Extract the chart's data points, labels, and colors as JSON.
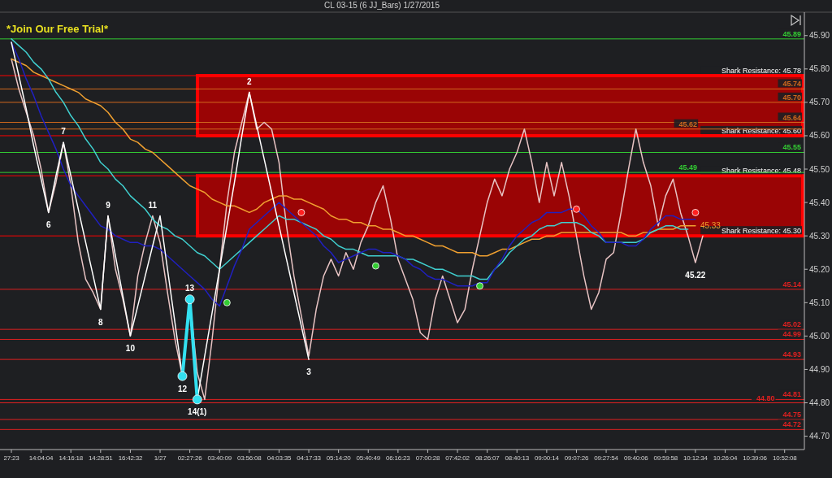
{
  "chart_data": {
    "type": "line",
    "title": "CL 03-15 (6 JJ_Bars)  1/27/2015",
    "categories": [
      "27:23",
      null,
      null,
      null,
      "14:04:04",
      null,
      null,
      null,
      "14:16:18",
      null,
      null,
      null,
      "14:28:51",
      null,
      null,
      null,
      "16:42:32",
      null,
      null,
      null,
      "1/27",
      null,
      null,
      null,
      "02:27:26",
      null,
      null,
      null,
      "03:40:09",
      null,
      null,
      null,
      "03:56:08",
      null,
      null,
      null,
      "04:03:35",
      null,
      null,
      null,
      "04:17:33",
      null,
      null,
      null,
      "05:14:20",
      null,
      null,
      null,
      "05:40:49",
      null,
      null,
      null,
      "06:16:23",
      null,
      null,
      null,
      "07:00:28",
      null,
      null,
      null,
      "07:42:02",
      null,
      null,
      null,
      "08:26:07",
      null,
      null,
      null,
      "08:40:13",
      null,
      null,
      null,
      "09:00:14",
      null,
      null,
      null,
      "09:07:26",
      null,
      null,
      null,
      "09:27:54",
      null,
      null,
      null,
      "09:40:06",
      null,
      null,
      null,
      "09:59:58",
      null,
      null,
      null,
      "10:12:34",
      null,
      null,
      null,
      "10:26:04",
      null,
      null,
      null,
      "10:39:06",
      null,
      null,
      null,
      "10:52:08",
      null,
      null
    ],
    "ylim": [
      44.66,
      45.97
    ],
    "yticks": [
      {
        "value": 44.7,
        "label": "44.70"
      },
      {
        "value": 44.8,
        "label": "44.80"
      },
      {
        "value": 44.9,
        "label": "44.90"
      },
      {
        "value": 45.0,
        "label": "45.00"
      },
      {
        "value": 45.1,
        "label": "45.10"
      },
      {
        "value": 45.2,
        "label": "45.20"
      },
      {
        "value": 45.3,
        "label": "45.30"
      },
      {
        "value": 45.4,
        "label": "45.40"
      },
      {
        "value": 45.5,
        "label": "45.50"
      },
      {
        "value": 45.6,
        "label": "45.60"
      },
      {
        "value": 45.7,
        "label": "45.70"
      },
      {
        "value": 45.8,
        "label": "45.80"
      },
      {
        "value": 45.9,
        "label": "45.90"
      }
    ],
    "grid": false,
    "bands": [
      {
        "axis": "y",
        "from": 45.6,
        "to": 45.78,
        "color": "#ff0000"
      },
      {
        "axis": "y",
        "from": 45.3,
        "to": 45.48,
        "color": "#ff0000"
      }
    ],
    "ref_lines": [
      {
        "axis": "y",
        "value": 45.78,
        "label": "Shark Resistance: 45.78",
        "color": "#ff0000"
      },
      {
        "axis": "y",
        "value": 45.6,
        "label": "Shark Resistance: 45.60",
        "color": "#ff0000"
      },
      {
        "axis": "y",
        "value": 45.48,
        "label": "Shark Resistance: 45.48",
        "color": "#ff0000"
      },
      {
        "axis": "y",
        "value": 45.3,
        "label": "Shark Resistance: 45.30",
        "color": "#ff0000"
      },
      {
        "axis": "y",
        "value": 45.89,
        "label": "45.89",
        "color": "#33cc33"
      },
      {
        "axis": "y",
        "value": 45.74,
        "label": "45.74",
        "color": "#d2691e"
      },
      {
        "axis": "y",
        "value": 45.7,
        "label": "45.70",
        "color": "#d2691e"
      },
      {
        "axis": "y",
        "value": 45.64,
        "label": "45.64",
        "color": "#d2691e"
      },
      {
        "axis": "y",
        "value": 45.62,
        "label": "45.62",
        "color": "#d2691e"
      },
      {
        "axis": "y",
        "value": 45.55,
        "label": "45.55",
        "color": "#33cc33"
      },
      {
        "axis": "y",
        "value": 45.49,
        "label": "45.49",
        "color": "#33cc33"
      },
      {
        "axis": "y",
        "value": 45.14,
        "label": "45.14",
        "color": "#e02020"
      },
      {
        "axis": "y",
        "value": 45.02,
        "label": "45.02",
        "color": "#e02020"
      },
      {
        "axis": "y",
        "value": 44.99,
        "label": "44.99",
        "color": "#e02020"
      },
      {
        "axis": "y",
        "value": 44.93,
        "label": "44.93",
        "color": "#e02020"
      },
      {
        "axis": "y",
        "value": 44.81,
        "label": "44.81",
        "color": "#e02020"
      },
      {
        "axis": "y",
        "value": 44.8,
        "label": "44.80",
        "color": "#e02020"
      },
      {
        "axis": "y",
        "value": 44.75,
        "label": "44.75",
        "color": "#e02020"
      },
      {
        "axis": "y",
        "value": 44.72,
        "label": "44.72",
        "color": "#e02020"
      }
    ],
    "annotations": [
      "*Join Our Free Trial*",
      {
        "text": "6",
        "y": 45.37
      },
      {
        "text": "7",
        "y": 45.58
      },
      {
        "text": "8",
        "y": 45.08
      },
      {
        "text": "9",
        "y": 45.36
      },
      {
        "text": "10",
        "y": 45.0
      },
      {
        "text": "11",
        "y": 45.36
      },
      {
        "text": "12",
        "y": 44.88
      },
      {
        "text": "13",
        "y": 45.11
      },
      {
        "text": "14(1)",
        "y": 44.81
      },
      {
        "text": "2",
        "y": 45.73
      },
      {
        "text": "3",
        "y": 44.93
      }
    ],
    "series": [
      {
        "color": "#e8c4c4",
        "values": [
          45.83,
          45.74,
          45.67,
          45.6,
          45.5,
          45.37,
          45.46,
          45.58,
          45.45,
          45.28,
          45.17,
          45.13,
          45.08,
          45.36,
          45.2,
          45.11,
          45.0,
          45.18,
          45.28,
          45.36,
          45.28,
          45.13,
          44.99,
          44.88,
          45.11,
          44.89,
          44.81,
          44.99,
          45.2,
          45.4,
          45.55,
          45.64,
          45.73,
          45.62,
          45.64,
          45.62,
          45.52,
          45.33,
          45.18,
          45.06,
          44.94,
          45.08,
          45.18,
          45.23,
          45.18,
          45.25,
          45.2,
          45.28,
          45.33,
          45.4,
          45.45,
          45.35,
          45.23,
          45.17,
          45.11,
          45.01,
          44.99,
          45.11,
          45.18,
          45.11,
          45.04,
          45.08,
          45.2,
          45.3,
          45.4,
          45.47,
          45.42,
          45.5,
          45.55,
          45.62,
          45.52,
          45.4,
          45.52,
          45.42,
          45.52,
          45.42,
          45.3,
          45.18,
          45.08,
          45.13,
          45.23,
          45.25,
          45.37,
          45.5,
          45.62,
          45.52,
          45.45,
          45.33,
          45.42,
          45.47,
          45.37,
          45.3,
          45.22,
          45.3,
          null,
          null,
          null,
          null,
          null,
          null,
          null,
          null,
          null,
          null,
          null,
          null,
          null
        ],
        "value_labels": [
          null,
          null,
          null,
          null,
          null,
          null,
          null,
          null,
          null,
          null,
          null,
          null,
          null,
          null,
          null,
          null,
          null,
          null,
          null,
          null,
          null,
          null,
          null,
          null,
          null,
          null,
          null,
          null,
          null,
          null,
          null,
          null,
          null,
          null,
          null,
          null,
          null,
          null,
          null,
          null,
          null,
          null,
          null,
          null,
          null,
          null,
          null,
          null,
          null,
          null,
          null,
          null,
          null,
          null,
          null,
          null,
          null,
          null,
          null,
          null,
          null,
          null,
          null,
          null,
          null,
          null,
          null,
          null,
          null,
          null,
          null,
          null,
          null,
          null,
          null,
          null,
          null,
          null,
          null,
          null,
          null,
          null,
          null,
          null,
          null,
          null,
          null,
          null,
          null,
          null,
          null,
          null,
          "45.22",
          null,
          null,
          null,
          null,
          null,
          null,
          null,
          null,
          null,
          null,
          null,
          null,
          null,
          null
        ]
      },
      {
        "color": "#f0a030",
        "values": [
          45.83,
          45.82,
          45.81,
          45.79,
          45.78,
          45.77,
          45.76,
          45.75,
          45.74,
          45.73,
          45.71,
          45.7,
          45.69,
          45.67,
          45.64,
          45.62,
          45.59,
          45.58,
          45.56,
          45.55,
          45.53,
          45.51,
          45.49,
          45.47,
          45.45,
          45.44,
          45.43,
          45.41,
          45.4,
          45.39,
          45.39,
          45.38,
          45.37,
          45.38,
          45.4,
          45.41,
          45.42,
          45.42,
          45.41,
          45.41,
          45.4,
          45.39,
          45.38,
          45.36,
          45.35,
          45.35,
          45.34,
          45.34,
          45.33,
          45.33,
          45.32,
          45.32,
          45.31,
          45.3,
          45.3,
          45.29,
          45.28,
          45.27,
          45.27,
          45.26,
          45.25,
          45.25,
          45.25,
          45.24,
          45.24,
          45.25,
          45.26,
          45.26,
          45.27,
          45.28,
          45.29,
          45.29,
          45.3,
          45.3,
          45.31,
          45.31,
          45.31,
          45.31,
          45.31,
          45.31,
          45.31,
          45.31,
          45.31,
          45.3,
          45.3,
          45.31,
          45.31,
          45.32,
          45.32,
          45.32,
          45.33,
          45.33,
          45.33,
          null,
          null,
          null,
          null,
          null,
          null,
          null,
          null,
          null,
          null,
          null,
          null,
          null,
          null
        ],
        "value_labels": [
          null,
          null,
          null,
          null,
          null,
          null,
          null,
          null,
          null,
          null,
          null,
          null,
          null,
          null,
          null,
          null,
          null,
          null,
          null,
          null,
          null,
          null,
          null,
          null,
          null,
          null,
          null,
          null,
          null,
          null,
          null,
          null,
          null,
          null,
          null,
          null,
          null,
          null,
          null,
          null,
          null,
          null,
          null,
          null,
          null,
          null,
          null,
          null,
          null,
          null,
          null,
          null,
          null,
          null,
          null,
          null,
          null,
          null,
          null,
          null,
          null,
          null,
          null,
          null,
          null,
          null,
          null,
          null,
          null,
          null,
          null,
          null,
          null,
          null,
          null,
          null,
          null,
          null,
          null,
          null,
          null,
          null,
          null,
          null,
          null,
          null,
          null,
          null,
          null,
          null,
          null,
          null,
          "45.33",
          null,
          null,
          null,
          null,
          null,
          null,
          null,
          null,
          null,
          null,
          null,
          null,
          null,
          null
        ]
      },
      {
        "color": "#40d0d0",
        "values": [
          45.89,
          45.87,
          45.85,
          45.82,
          45.8,
          45.77,
          45.73,
          45.7,
          45.66,
          45.63,
          45.59,
          45.56,
          45.52,
          45.5,
          45.47,
          45.45,
          45.42,
          45.4,
          45.38,
          45.35,
          45.33,
          45.32,
          45.3,
          45.29,
          45.27,
          45.25,
          45.24,
          45.22,
          45.2,
          45.22,
          45.24,
          45.26,
          45.28,
          45.3,
          45.32,
          45.34,
          45.36,
          45.35,
          45.35,
          45.34,
          45.33,
          45.32,
          45.3,
          45.29,
          45.27,
          45.26,
          45.26,
          45.25,
          45.24,
          45.24,
          45.24,
          45.24,
          45.24,
          45.23,
          45.23,
          45.22,
          45.21,
          45.2,
          45.2,
          45.19,
          45.18,
          45.18,
          45.18,
          45.17,
          45.17,
          45.2,
          45.22,
          45.25,
          45.27,
          45.29,
          45.3,
          45.32,
          45.33,
          45.33,
          45.34,
          45.34,
          45.34,
          45.33,
          45.31,
          45.3,
          45.28,
          45.28,
          45.28,
          45.28,
          45.28,
          45.29,
          45.31,
          45.32,
          45.33,
          45.33,
          45.32,
          45.32,
          null,
          null,
          null,
          null,
          null,
          null,
          null,
          null,
          null,
          null,
          null,
          null,
          null,
          null,
          null
        ]
      },
      {
        "color": "#2020c0",
        "values": [
          45.88,
          45.83,
          45.77,
          45.72,
          45.66,
          45.61,
          45.56,
          45.5,
          45.45,
          45.42,
          45.39,
          45.36,
          45.33,
          45.32,
          45.3,
          45.29,
          45.28,
          45.28,
          45.27,
          45.27,
          45.26,
          45.24,
          45.22,
          45.2,
          45.18,
          45.16,
          45.14,
          45.11,
          45.09,
          45.15,
          45.21,
          45.26,
          45.32,
          45.34,
          45.36,
          45.38,
          45.4,
          45.38,
          45.36,
          45.34,
          45.32,
          45.3,
          45.27,
          45.25,
          45.22,
          45.23,
          45.24,
          45.25,
          45.26,
          45.26,
          45.25,
          45.25,
          45.24,
          45.23,
          45.21,
          45.2,
          45.18,
          45.17,
          45.17,
          45.16,
          45.15,
          45.15,
          45.15,
          45.16,
          45.16,
          45.2,
          45.23,
          45.27,
          45.3,
          45.32,
          45.34,
          45.35,
          45.37,
          45.37,
          45.37,
          45.38,
          45.38,
          45.36,
          45.33,
          45.31,
          45.28,
          45.28,
          45.28,
          45.27,
          45.27,
          45.29,
          45.32,
          45.34,
          45.36,
          45.36,
          45.35,
          45.35,
          45.35,
          null,
          null,
          null,
          null,
          null,
          null,
          null,
          null,
          null,
          null,
          null,
          null,
          null,
          null
        ]
      },
      {
        "color": "#ffffff",
        "values": [
          45.88,
          45.78,
          45.68,
          45.57,
          45.47,
          45.37,
          45.48,
          45.58,
          45.48,
          45.38,
          45.28,
          45.18,
          45.08,
          45.36,
          45.24,
          45.12,
          45.0,
          45.09,
          45.18,
          45.27,
          45.36,
          45.2,
          45.04,
          44.88,
          45.11,
          44.81,
          44.94,
          45.07,
          45.2,
          45.33,
          45.46,
          45.6,
          45.73,
          45.63,
          45.53,
          45.43,
          45.33,
          45.23,
          45.13,
          45.03,
          44.93,
          null,
          null,
          null,
          null,
          null,
          null,
          null,
          null,
          null,
          null,
          null,
          null,
          null,
          null,
          null,
          null,
          null,
          null,
          null,
          null,
          null,
          null,
          null,
          null,
          null,
          null,
          null,
          null,
          null,
          null,
          null,
          null,
          null,
          null,
          null,
          null,
          null,
          null,
          null,
          null,
          null,
          null,
          null,
          null,
          null,
          null,
          null,
          null,
          null,
          null,
          null,
          null,
          null,
          null,
          null,
          null,
          null,
          null,
          null,
          null,
          null,
          null,
          null,
          null,
          null,
          null
        ]
      },
      {
        "color": "#33e0f0",
        "marker": "circle",
        "values": [
          null,
          null,
          null,
          null,
          null,
          null,
          null,
          null,
          null,
          null,
          null,
          null,
          null,
          null,
          null,
          null,
          null,
          null,
          null,
          null,
          null,
          null,
          null,
          44.88,
          45.11,
          44.81,
          null,
          null,
          null,
          null,
          null,
          null,
          null,
          null,
          null,
          null,
          null,
          null,
          null,
          null,
          null,
          null,
          null,
          null,
          null,
          null,
          null,
          null,
          null,
          null,
          null,
          null,
          null,
          null,
          null,
          null,
          null,
          null,
          null,
          null,
          null,
          null,
          null,
          null,
          null,
          null,
          null,
          null,
          null,
          null,
          null,
          null,
          null,
          null,
          null,
          null,
          null,
          null,
          null,
          null,
          null,
          null,
          null,
          null,
          null,
          null,
          null,
          null,
          null,
          null,
          null,
          null,
          null,
          null,
          null,
          null,
          null,
          null,
          null,
          null,
          null,
          null,
          null,
          null,
          null,
          null,
          null
        ]
      },
      {
        "type": "scatter",
        "color": "#33cc33",
        "marker": "circle",
        "values": [
          null,
          null,
          null,
          null,
          null,
          null,
          null,
          null,
          null,
          null,
          null,
          null,
          null,
          null,
          null,
          null,
          null,
          null,
          null,
          null,
          null,
          null,
          null,
          null,
          null,
          null,
          null,
          null,
          null,
          45.1,
          null,
          null,
          null,
          null,
          null,
          null,
          null,
          null,
          null,
          null,
          null,
          null,
          null,
          null,
          null,
          null,
          null,
          null,
          null,
          45.21,
          null,
          null,
          null,
          null,
          null,
          null,
          null,
          null,
          null,
          null,
          null,
          null,
          null,
          45.15,
          null,
          null,
          null,
          null,
          null,
          null,
          null,
          null,
          null,
          null,
          null,
          null,
          null,
          null,
          null,
          null,
          null,
          null,
          null,
          null,
          null,
          null,
          null,
          null,
          null,
          null,
          null,
          null,
          null,
          null,
          null,
          null,
          null,
          null,
          null,
          null,
          null,
          null,
          null,
          null,
          null,
          null,
          null
        ]
      },
      {
        "type": "scatter",
        "color": "#ff2020",
        "marker": "circle",
        "values": [
          null,
          null,
          null,
          null,
          null,
          null,
          null,
          null,
          null,
          null,
          null,
          null,
          null,
          null,
          null,
          null,
          null,
          null,
          null,
          null,
          null,
          null,
          null,
          null,
          null,
          null,
          null,
          null,
          null,
          null,
          null,
          null,
          null,
          null,
          null,
          null,
          null,
          null,
          null,
          45.37,
          null,
          null,
          null,
          null,
          null,
          null,
          null,
          null,
          null,
          null,
          null,
          null,
          null,
          null,
          null,
          null,
          null,
          null,
          null,
          null,
          null,
          null,
          null,
          null,
          null,
          null,
          null,
          null,
          null,
          null,
          null,
          null,
          null,
          null,
          null,
          null,
          45.38,
          null,
          null,
          null,
          null,
          null,
          null,
          null,
          null,
          null,
          null,
          null,
          null,
          null,
          null,
          null,
          45.37,
          null,
          null,
          null,
          null,
          null,
          null,
          null,
          null,
          null,
          null,
          null,
          null,
          null,
          null
        ]
      }
    ]
  }
}
